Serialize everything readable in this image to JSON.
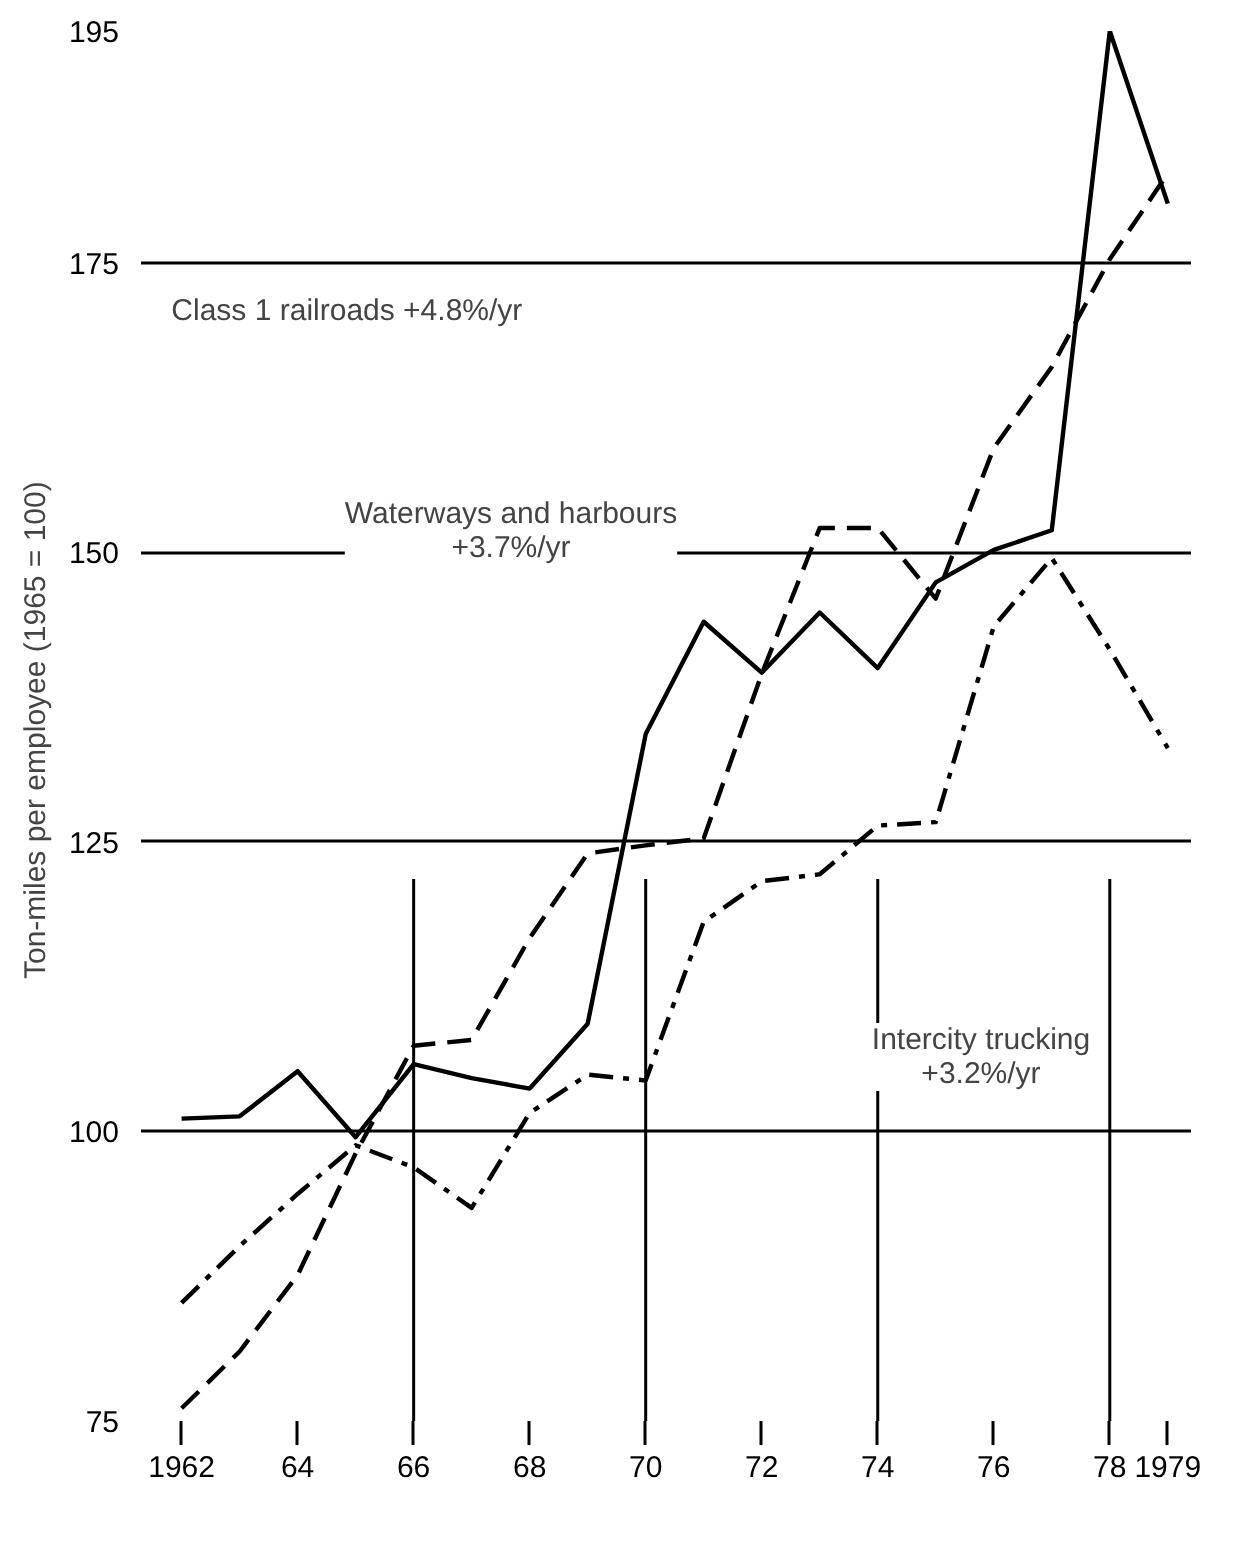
{
  "chart_data": {
    "type": "line",
    "ylabel": "Ton-miles per employee  (1965 = 100)",
    "x": [
      1962,
      1963,
      1964,
      1965,
      1966,
      1967,
      1968,
      1969,
      1970,
      1971,
      1972,
      1973,
      1974,
      1975,
      1976,
      1977,
      1978,
      1979
    ],
    "series": [
      {
        "color": "#000000",
        "line_style": "solid",
        "values": [
          101.1,
          101.3,
          105.2,
          99.5,
          105.8,
          104.6,
          103.7,
          109.3,
          134.3,
          144,
          139.6,
          144.8,
          140,
          147.4,
          150.2,
          151.9,
          195,
          180.1
        ]
      },
      {
        "color": "#000000",
        "line_style": "dashed",
        "values": [
          76.1,
          81,
          87.6,
          98.1,
          107.4,
          107.9,
          116.7,
          124,
          124.7,
          125.3,
          139.5,
          152.1,
          152.1,
          146,
          159,
          166,
          175.3,
          182.7
        ]
      },
      {
        "color": "#000000",
        "line_style": "dashdot",
        "values": [
          85.2,
          90.1,
          94.6,
          98.8,
          96.9,
          93.4,
          101.6,
          104.9,
          104.4,
          118.1,
          121.6,
          122.2,
          126.4,
          126.7,
          143.6,
          149.5,
          141.6,
          133.1
        ]
      }
    ],
    "xlim": [
      1961.3,
      1979.4
    ],
    "ylim": [
      75,
      195
    ],
    "xticks": [
      {
        "value": 1962,
        "label": "1962"
      },
      {
        "value": 1964,
        "label": "64"
      },
      {
        "value": 1966,
        "label": "66"
      },
      {
        "value": 1968,
        "label": "68"
      },
      {
        "value": 1970,
        "label": "70"
      },
      {
        "value": 1972,
        "label": "72"
      },
      {
        "value": 1974,
        "label": "74"
      },
      {
        "value": 1976,
        "label": "76"
      },
      {
        "value": 1978,
        "label": "78"
      },
      {
        "value": 1979,
        "label": "1979"
      }
    ],
    "yticks": [
      75,
      100,
      125,
      150,
      175,
      195
    ],
    "grid": "y",
    "marker": "none",
    "ref_lines": [
      {
        "axis": "x",
        "value": 1966
      },
      {
        "axis": "x",
        "value": 1970
      },
      {
        "axis": "x",
        "value": 1974
      },
      {
        "axis": "x",
        "value": 1978
      }
    ],
    "annotations": [
      "Class 1 railroads  +4.8%/yr",
      "Waterways and harbours\n+3.7%/yr",
      "Intercity trucking\n+3.2%/yr"
    ]
  }
}
